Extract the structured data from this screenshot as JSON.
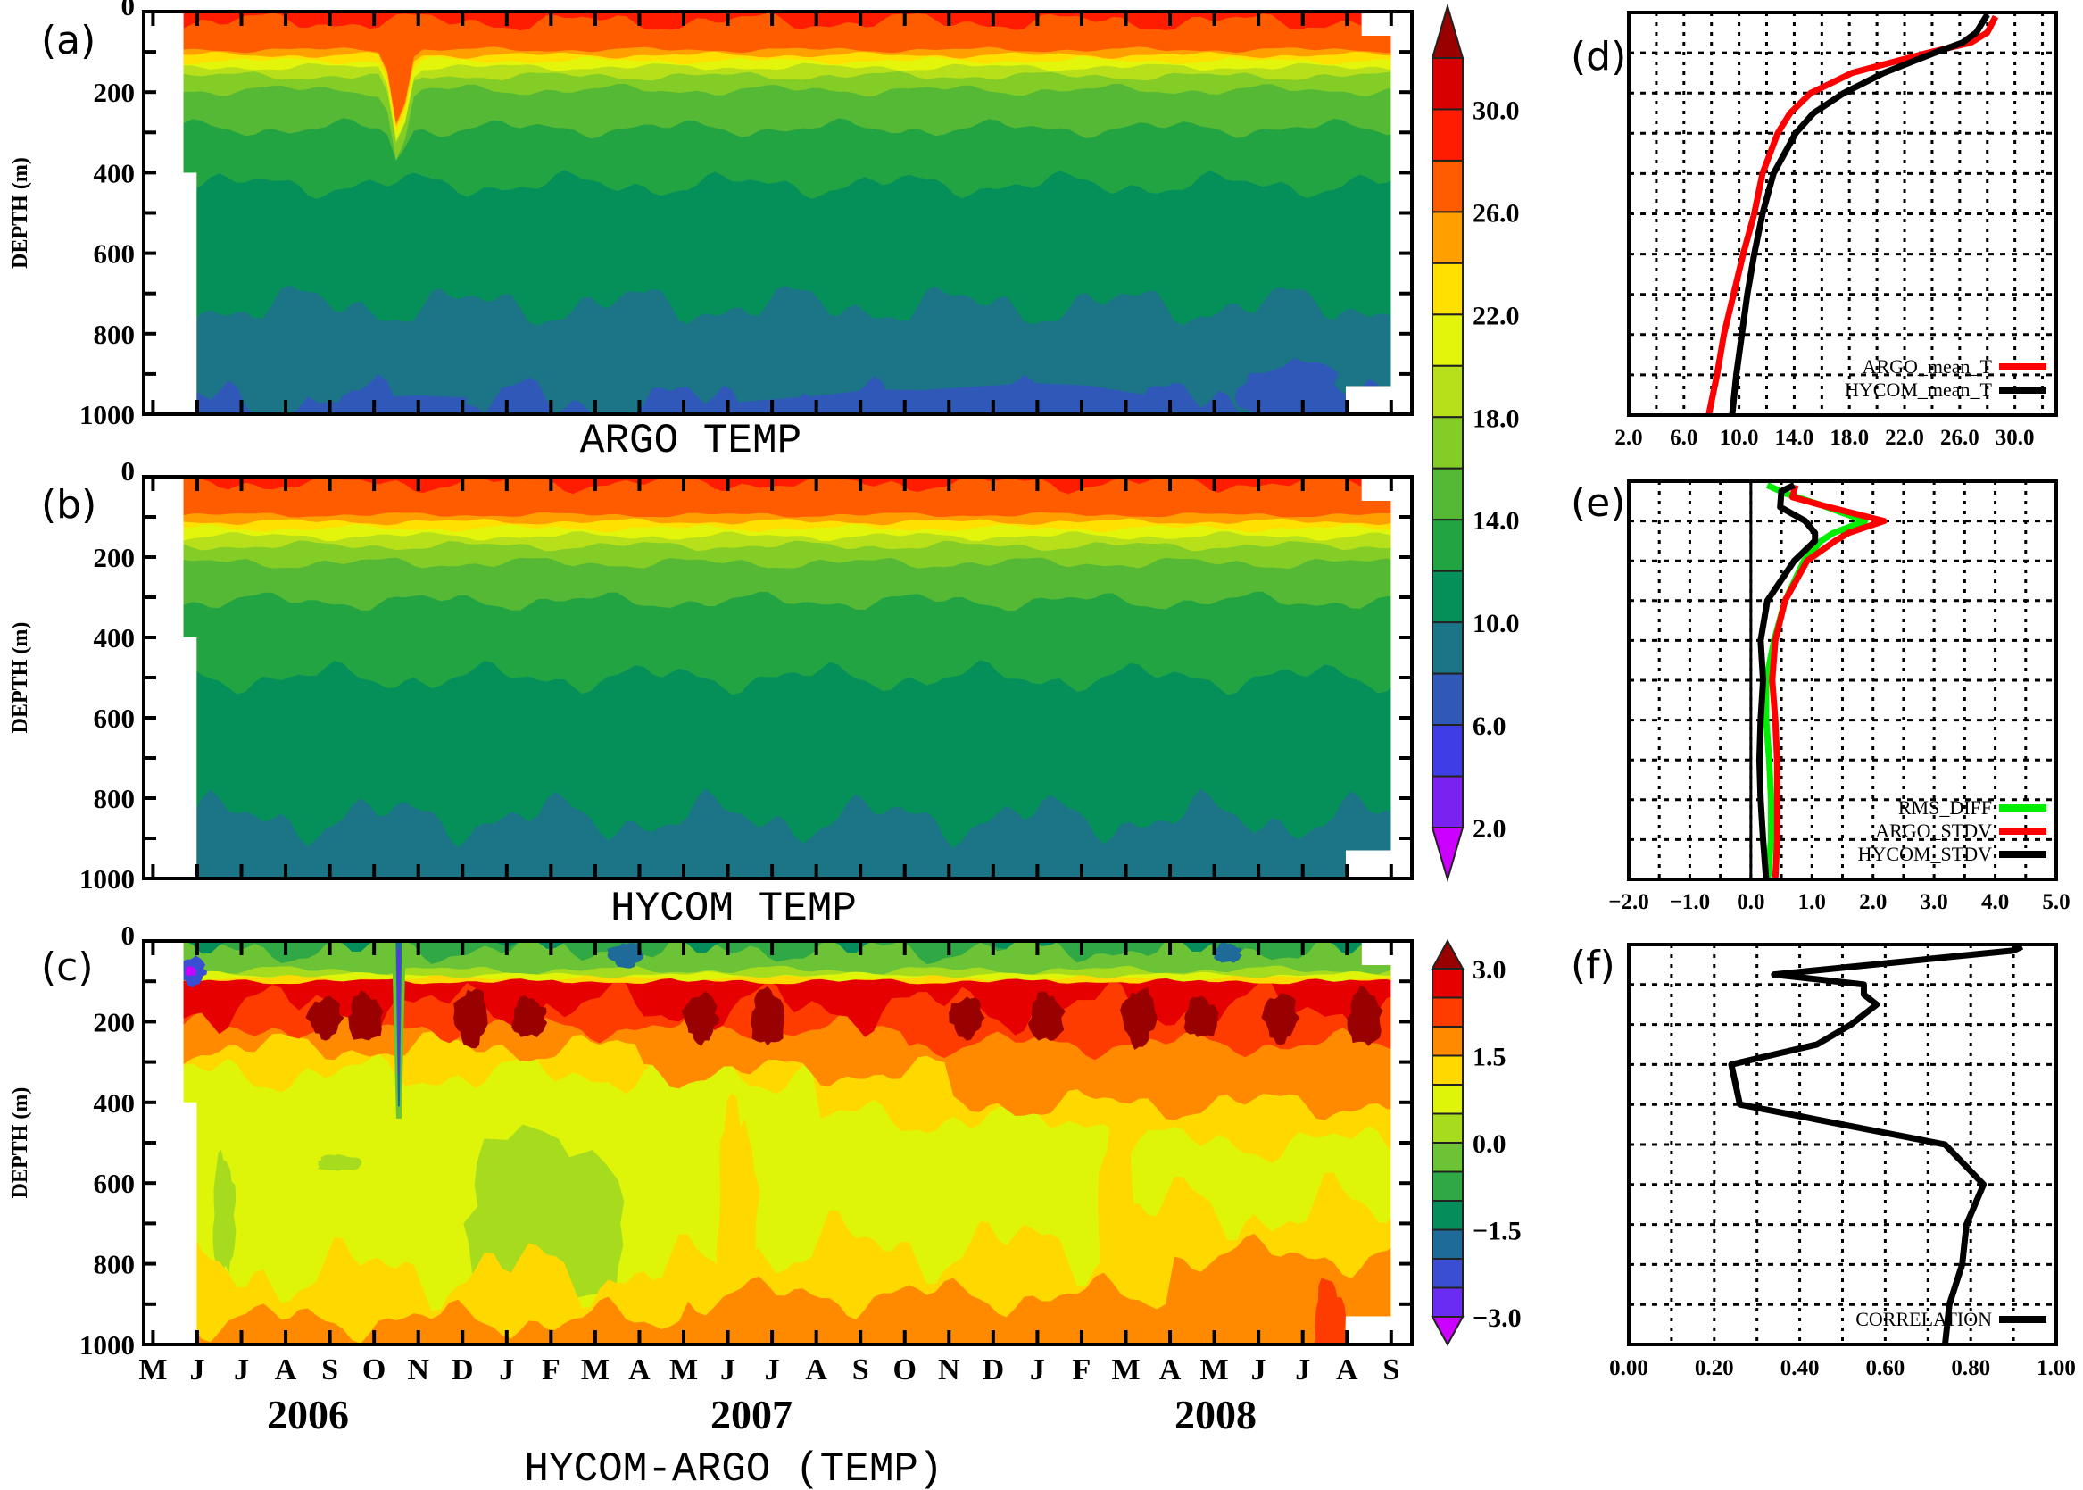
{
  "colorbars": {
    "temp": {
      "labels": [
        "30.0",
        "26.0",
        "22.0",
        "18.0",
        "14.0",
        "10.0",
        "6.0",
        "2.0"
      ],
      "levels": [
        2,
        4,
        6,
        8,
        10,
        12,
        14,
        16,
        18,
        20,
        22,
        24,
        26,
        28,
        30,
        32
      ],
      "band_colors_top_to_bottom": [
        "#d80000",
        "#ff1c00",
        "#ff5c00",
        "#ff9f00",
        "#ffe000",
        "#e2f50a",
        "#b8e01a",
        "#84cc26",
        "#55b935",
        "#22a443",
        "#05905a",
        "#1b7587",
        "#2f58b8",
        "#3f3ee6",
        "#7a22f0"
      ],
      "over_color": "#990000",
      "under_color": "#cc00ff"
    },
    "diff": {
      "labels": [
        "3.0",
        "1.5",
        "0.0",
        "−1.5",
        "−3.0"
      ],
      "levels": [
        -3.0,
        -2.5,
        -2.0,
        -1.5,
        -1.0,
        -0.5,
        0.0,
        0.5,
        1.0,
        1.5,
        2.0,
        2.5,
        3.0
      ],
      "band_colors_top_to_bottom": [
        "#e60000",
        "#ff3c00",
        "#ff8a00",
        "#ffd800",
        "#def50a",
        "#a6db1e",
        "#6cc335",
        "#2fa845",
        "#068d5c",
        "#1e6a98",
        "#3a4ed4",
        "#6a2cf2"
      ],
      "over_color": "#990000",
      "under_color": "#cc00ff"
    }
  },
  "time_axis": {
    "months": [
      "M",
      "J",
      "J",
      "A",
      "S",
      "O",
      "N",
      "D",
      "J",
      "F",
      "M",
      "A",
      "M",
      "J",
      "J",
      "A",
      "S",
      "O",
      "N",
      "D",
      "J",
      "F",
      "M",
      "A",
      "M",
      "J",
      "J",
      "A",
      "S"
    ],
    "years": [
      "2006",
      "2007",
      "2008"
    ]
  },
  "depth_axis": {
    "label": "DEPTH (m)",
    "tick_labels": [
      "0",
      "200",
      "400",
      "600",
      "800",
      "1000"
    ],
    "tick_values": [
      0,
      200,
      400,
      600,
      800,
      1000
    ]
  },
  "chart_data": [
    {
      "panel": "(a)",
      "type": "heatmap",
      "title": "ARGO TEMP",
      "ylabel": "DEPTH (m)",
      "ylim": [
        1000,
        0
      ],
      "colorbar": "temp",
      "x_range": [
        "2006-05",
        "2008-09"
      ],
      "approx_isotherm_depths_m": {
        "28": 25,
        "26": 95,
        "24": 108,
        "22": 122,
        "20": 138,
        "18": 160,
        "16": 195,
        "14": 290,
        "12": 430,
        "10": 730,
        "8": 975
      }
    },
    {
      "panel": "(b)",
      "type": "heatmap",
      "title": "HYCOM TEMP",
      "ylabel": "DEPTH (m)",
      "ylim": [
        1000,
        0
      ],
      "colorbar": "temp",
      "x_range": [
        "2006-05",
        "2008-09"
      ],
      "approx_isotherm_depths_m": {
        "28": 15,
        "26": 95,
        "24": 112,
        "22": 128,
        "20": 148,
        "18": 172,
        "16": 215,
        "14": 310,
        "12": 500,
        "10": 850
      }
    },
    {
      "panel": "(c)",
      "type": "heatmap",
      "title": "HYCOM-ARGO (TEMP)",
      "ylabel": "DEPTH (m)",
      "ylim": [
        1000,
        0
      ],
      "colorbar": "diff",
      "x_range": [
        "2006-05",
        "2008-09"
      ]
    },
    {
      "panel": "(d)",
      "type": "line",
      "xlim": [
        2,
        33
      ],
      "ylim": [
        1000,
        0
      ],
      "grid": true,
      "grid_step": 2,
      "xticks": [
        2,
        6,
        10,
        14,
        18,
        22,
        26,
        30
      ],
      "xticklabels": [
        "2.0",
        "6.0",
        "10.0",
        "14.0",
        "18.0",
        "22.0",
        "26.0",
        "30.0"
      ],
      "legend": "bottom-right",
      "series": [
        {
          "name": "ARGO_mean_T",
          "color": "#ff0000",
          "depth": [
            10,
            50,
            75,
            100,
            150,
            200,
            250,
            300,
            400,
            500,
            600,
            700,
            800,
            900,
            1000
          ],
          "values": [
            28.6,
            28.0,
            26.8,
            23.7,
            18.2,
            15.2,
            13.7,
            12.8,
            11.7,
            11.1,
            10.3,
            9.6,
            8.9,
            8.4,
            7.8
          ]
        },
        {
          "name": "HYCOM_mean_T",
          "color": "#000000",
          "depth": [
            5,
            50,
            75,
            100,
            150,
            200,
            250,
            300,
            400,
            500,
            600,
            700,
            800,
            900,
            1000
          ],
          "values": [
            28.0,
            27.2,
            26.2,
            24.2,
            20.5,
            17.6,
            15.4,
            14.1,
            12.5,
            11.7,
            11.1,
            10.6,
            10.2,
            9.8,
            9.5
          ]
        }
      ]
    },
    {
      "panel": "(e)",
      "type": "line",
      "xlim": [
        -2,
        5
      ],
      "ylim": [
        1000,
        0
      ],
      "grid": true,
      "grid_step": 0.5,
      "xticks": [
        -2,
        -1,
        0,
        1,
        2,
        3,
        4,
        5
      ],
      "xticklabels": [
        "−2.0",
        "−1.0",
        "0.0",
        "1.0",
        "2.0",
        "3.0",
        "4.0",
        "5.0"
      ],
      "legend": "bottom-right",
      "series": [
        {
          "name": "RMS_DIFF",
          "color": "#00ee00",
          "depth": [
            10,
            30,
            60,
            100,
            130,
            150,
            200,
            300,
            400,
            500,
            600,
            700,
            800,
            900,
            1000
          ],
          "values": [
            0.27,
            0.55,
            1.15,
            1.87,
            1.35,
            1.15,
            0.87,
            0.56,
            0.38,
            0.25,
            0.25,
            0.3,
            0.33,
            0.33,
            0.28
          ]
        },
        {
          "name": "ARGO_STDV",
          "color": "#ff0000",
          "depth": [
            10,
            40,
            60,
            100,
            130,
            150,
            200,
            300,
            400,
            500,
            600,
            700,
            800,
            900,
            1000
          ],
          "values": [
            0.73,
            0.68,
            1.15,
            2.18,
            1.6,
            1.38,
            0.92,
            0.56,
            0.4,
            0.35,
            0.4,
            0.43,
            0.43,
            0.43,
            0.4
          ]
        },
        {
          "name": "HYCOM_STDV",
          "color": "#000000",
          "depth": [
            10,
            25,
            65,
            100,
            130,
            150,
            200,
            300,
            400,
            500,
            600,
            700,
            800,
            900,
            1000
          ],
          "values": [
            0.71,
            0.5,
            0.48,
            0.89,
            1.05,
            1.05,
            0.71,
            0.27,
            0.16,
            0.2,
            0.16,
            0.14,
            0.16,
            0.2,
            0.25
          ]
        }
      ]
    },
    {
      "panel": "(f)",
      "type": "line",
      "xlim": [
        0,
        1
      ],
      "ylim": [
        1000,
        0
      ],
      "grid": true,
      "grid_step": 0.1,
      "xticks": [
        0,
        0.2,
        0.4,
        0.6,
        0.8,
        1.0
      ],
      "xticklabels": [
        "0.00",
        "0.20",
        "0.40",
        "0.60",
        "0.80",
        "1.00"
      ],
      "legend": "bottom-right",
      "series": [
        {
          "name": "CORRELATION",
          "color": "#000000",
          "depth": [
            5,
            15,
            75,
            100,
            125,
            150,
            200,
            250,
            300,
            400,
            500,
            600,
            700,
            800,
            900,
            1000
          ],
          "values": [
            0.92,
            0.9,
            0.34,
            0.55,
            0.55,
            0.58,
            0.52,
            0.44,
            0.24,
            0.26,
            0.74,
            0.83,
            0.79,
            0.78,
            0.75,
            0.74
          ]
        }
      ]
    }
  ]
}
